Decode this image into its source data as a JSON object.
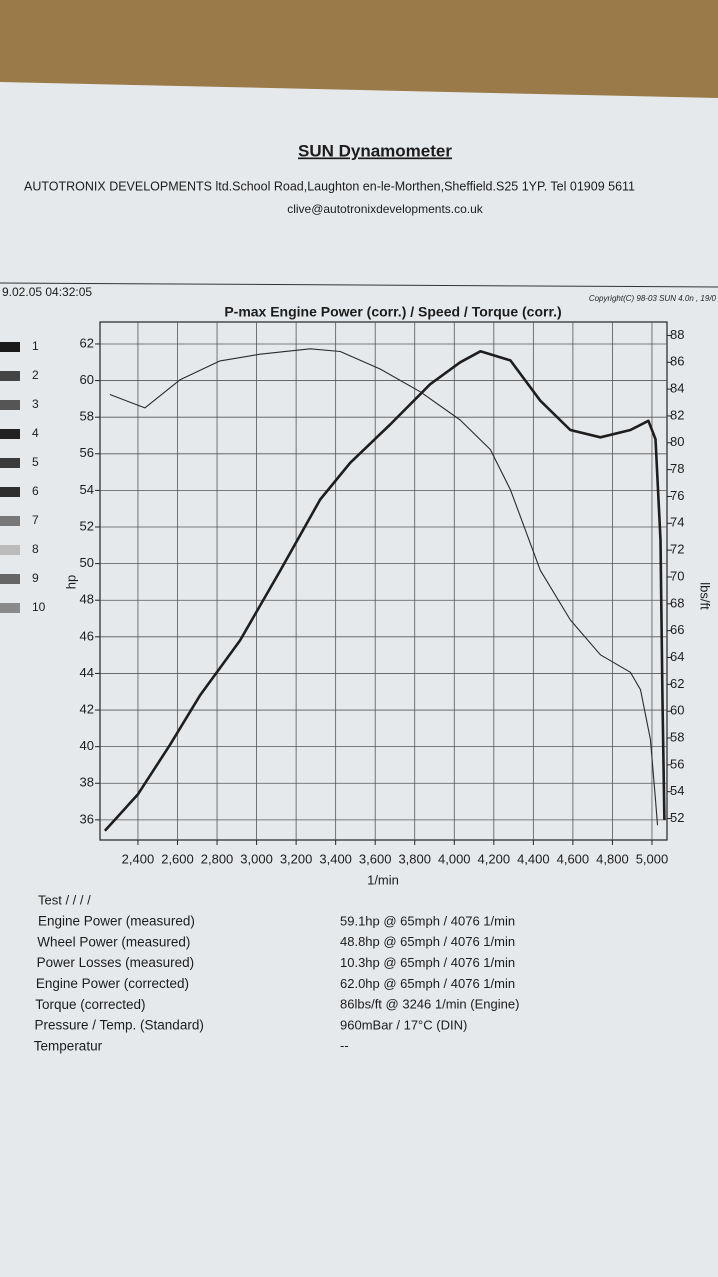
{
  "header": {
    "title": "SUN Dynamometer",
    "address": "AUTOTRONIX DEVELOPMENTS ltd.School Road,Laughton en-le-Morthen,Sheffield.S25 1YP. Tel 01909 5611",
    "email": "clive@autotronixdevelopments.co.uk"
  },
  "chart_data": {
    "type": "line",
    "date": "9.02.05 04:32:05",
    "copyright": "Copyright(C) 98-03 SUN 4.0n , 19/0",
    "title": "P-max Engine Power  (corr.) / Speed / Torque (corr.)",
    "ylabel": "hp",
    "y2label": "lbs/ft",
    "xlabel": "1/min",
    "grid": true,
    "xlim": [
      2208,
      5076
    ],
    "xticks": [
      {
        "value": 2400,
        "label": "2,400"
      },
      {
        "value": 2600,
        "label": "2,600"
      },
      {
        "value": 2800,
        "label": "2,800"
      },
      {
        "value": 3000,
        "label": "3,000"
      },
      {
        "value": 3200,
        "label": "3,200"
      },
      {
        "value": 3400,
        "label": "3,400"
      },
      {
        "value": 3600,
        "label": "3,600"
      },
      {
        "value": 3800,
        "label": "3,800"
      },
      {
        "value": 4000,
        "label": "4,000"
      },
      {
        "value": 4200,
        "label": "4,200"
      },
      {
        "value": 4400,
        "label": "4,400"
      },
      {
        "value": 4600,
        "label": "4,600"
      },
      {
        "value": 4800,
        "label": "4,800"
      },
      {
        "value": 5000,
        "label": "5,000"
      }
    ],
    "ylim": [
      34.9,
      63.2
    ],
    "yticks": [
      36,
      38,
      40,
      42,
      44,
      46,
      48,
      50,
      52,
      54,
      56,
      58,
      60,
      62
    ],
    "y2lim": [
      50.4,
      89
    ],
    "y2ticks": [
      52,
      54,
      56,
      58,
      60,
      62,
      64,
      66,
      68,
      70,
      72,
      74,
      76,
      78,
      80,
      82,
      84,
      86,
      88
    ],
    "series": [
      {
        "color": "#1e1e1e",
        "x": [
          2233,
          2400,
          2562,
          2714,
          2916,
          3119,
          3322,
          3473,
          3676,
          3878,
          4030,
          4132,
          4284,
          4435,
          4587,
          4739,
          4891,
          4982,
          5018,
          5043,
          5053,
          5063
        ],
        "values": [
          35.4,
          37.4,
          40.1,
          42.8,
          45.8,
          49.6,
          53.5,
          55.5,
          57.6,
          59.8,
          61.0,
          61.6,
          61.1,
          58.9,
          57.3,
          56.9,
          57.3,
          57.8,
          56.8,
          51.3,
          42.5,
          36.0
        ]
      },
      {
        "color": "#2a2a2a",
        "axis": "y2",
        "x": [
          2258,
          2435,
          2613,
          2815,
          3018,
          3271,
          3423,
          3625,
          3828,
          4030,
          4182,
          4284,
          4435,
          4587,
          4739,
          4891,
          4942,
          4992,
          5018,
          5028
        ],
        "values": [
          83.6,
          82.6,
          84.7,
          86.1,
          86.6,
          87.0,
          86.8,
          85.5,
          83.8,
          81.7,
          79.5,
          76.5,
          70.5,
          66.8,
          64.2,
          62.9,
          61.6,
          57.9,
          53.4,
          51.5
        ]
      }
    ]
  },
  "legend": [
    {
      "label": "1",
      "color": "#1a1a1a"
    },
    {
      "label": "2",
      "color": "#444"
    },
    {
      "label": "3",
      "color": "#555"
    },
    {
      "label": "4",
      "color": "#222"
    },
    {
      "label": "5",
      "color": "#3a3a3a"
    },
    {
      "label": "6",
      "color": "#2e2e2e"
    },
    {
      "label": "7",
      "color": "#777"
    },
    {
      "label": "8",
      "color": "#bbb"
    },
    {
      "label": "9",
      "color": "#666"
    },
    {
      "label": "10",
      "color": "#8a8a8a"
    }
  ],
  "results": {
    "test": "Test / / / /",
    "rows": [
      [
        "Engine Power (measured)",
        "59.1hp @ 65mph / 4076 1/min"
      ],
      [
        "Wheel Power (measured)",
        "48.8hp @ 65mph / 4076 1/min"
      ],
      [
        "Power Losses (measured)",
        "10.3hp @ 65mph / 4076 1/min"
      ],
      [
        "Engine Power (corrected)",
        "62.0hp @ 65mph / 4076 1/min"
      ],
      [
        "Torque (corrected)",
        "86lbs/ft @ 3246 1/min (Engine)"
      ],
      [
        "Pressure / Temp. (Standard)",
        "960mBar / 17°C (DIN)"
      ],
      [
        "Temperatur",
        "--"
      ]
    ]
  }
}
